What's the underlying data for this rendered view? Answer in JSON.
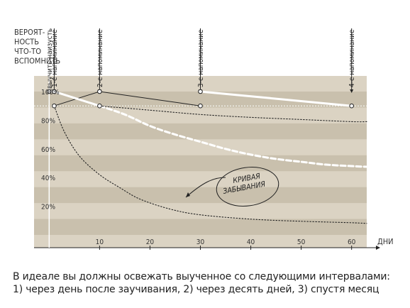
{
  "chart_data": {
    "type": "line",
    "ylabel_lines": [
      "ВЕРОЯТ-",
      "НОСТЬ",
      "ЧТО-ТО",
      "ВСПОМНИТЬ"
    ],
    "xlabel": "ДНИ",
    "y_ticks": [
      "100%",
      "80%",
      "60%",
      "40%",
      "20%"
    ],
    "y_tick_values": [
      100,
      80,
      60,
      40,
      20
    ],
    "x_ticks": [
      "10",
      "20",
      "30",
      "40",
      "50",
      "60"
    ],
    "x_tick_values": [
      10,
      20,
      30,
      40,
      50,
      60
    ],
    "xlim": [
      -3,
      63
    ],
    "ylim": [
      0,
      100
    ],
    "annotation_lines": [
      "КРИВАЯ",
      "ЗАБЫВАНИЯ"
    ],
    "events": [
      {
        "label": "выучить наизусть",
        "x": 0
      },
      {
        "label": "1-е напоминание",
        "x": 1
      },
      {
        "label": "2-е напоминание",
        "x": 10
      },
      {
        "label": "3-е напоминание",
        "x": 30
      },
      {
        "label": "4-е напоминание",
        "x": 60
      }
    ],
    "series": [
      {
        "style": "solid-thin",
        "points": [
          [
            1,
            90
          ],
          [
            10,
            100
          ],
          [
            30,
            90
          ]
        ]
      },
      {
        "style": "solid-bold",
        "points": [
          [
            0,
            100
          ],
          [
            1,
            100
          ],
          [
            10,
            90
          ]
        ]
      },
      {
        "style": "solid-bold",
        "points": [
          [
            30,
            100
          ],
          [
            60,
            90
          ]
        ]
      },
      {
        "style": "dotted",
        "points": [
          [
            1,
            90
          ],
          [
            3,
            72
          ],
          [
            6,
            55
          ],
          [
            10,
            42
          ],
          [
            14,
            33
          ],
          [
            18,
            25
          ],
          [
            24,
            18
          ],
          [
            30,
            14
          ],
          [
            40,
            11
          ],
          [
            50,
            9.5
          ],
          [
            60,
            8.5
          ],
          [
            63,
            8
          ]
        ]
      },
      {
        "style": "dashed-bold",
        "points": [
          [
            10,
            90
          ],
          [
            15,
            84
          ],
          [
            20,
            76
          ],
          [
            25,
            70
          ],
          [
            30,
            65
          ],
          [
            35,
            60
          ],
          [
            40,
            56
          ],
          [
            45,
            53
          ],
          [
            50,
            51
          ],
          [
            55,
            49
          ],
          [
            60,
            48
          ],
          [
            63,
            47.5
          ]
        ]
      },
      {
        "style": "dotted",
        "points": [
          [
            10,
            90
          ],
          [
            20,
            87
          ],
          [
            30,
            84
          ],
          [
            40,
            82
          ],
          [
            50,
            80.5
          ],
          [
            60,
            79
          ],
          [
            63,
            79
          ]
        ]
      }
    ]
  },
  "caption": {
    "line1": "В идеале вы должны освежать выученное со следующими интервалами:",
    "line2": "1) через день после заучивания, 2) через десять дней, 3) спустя месяц"
  },
  "colors": {
    "band_dark": "#c9c0ad",
    "band_light": "#dbd3c3",
    "ink": "#222222",
    "highlight": "#ffffff"
  }
}
